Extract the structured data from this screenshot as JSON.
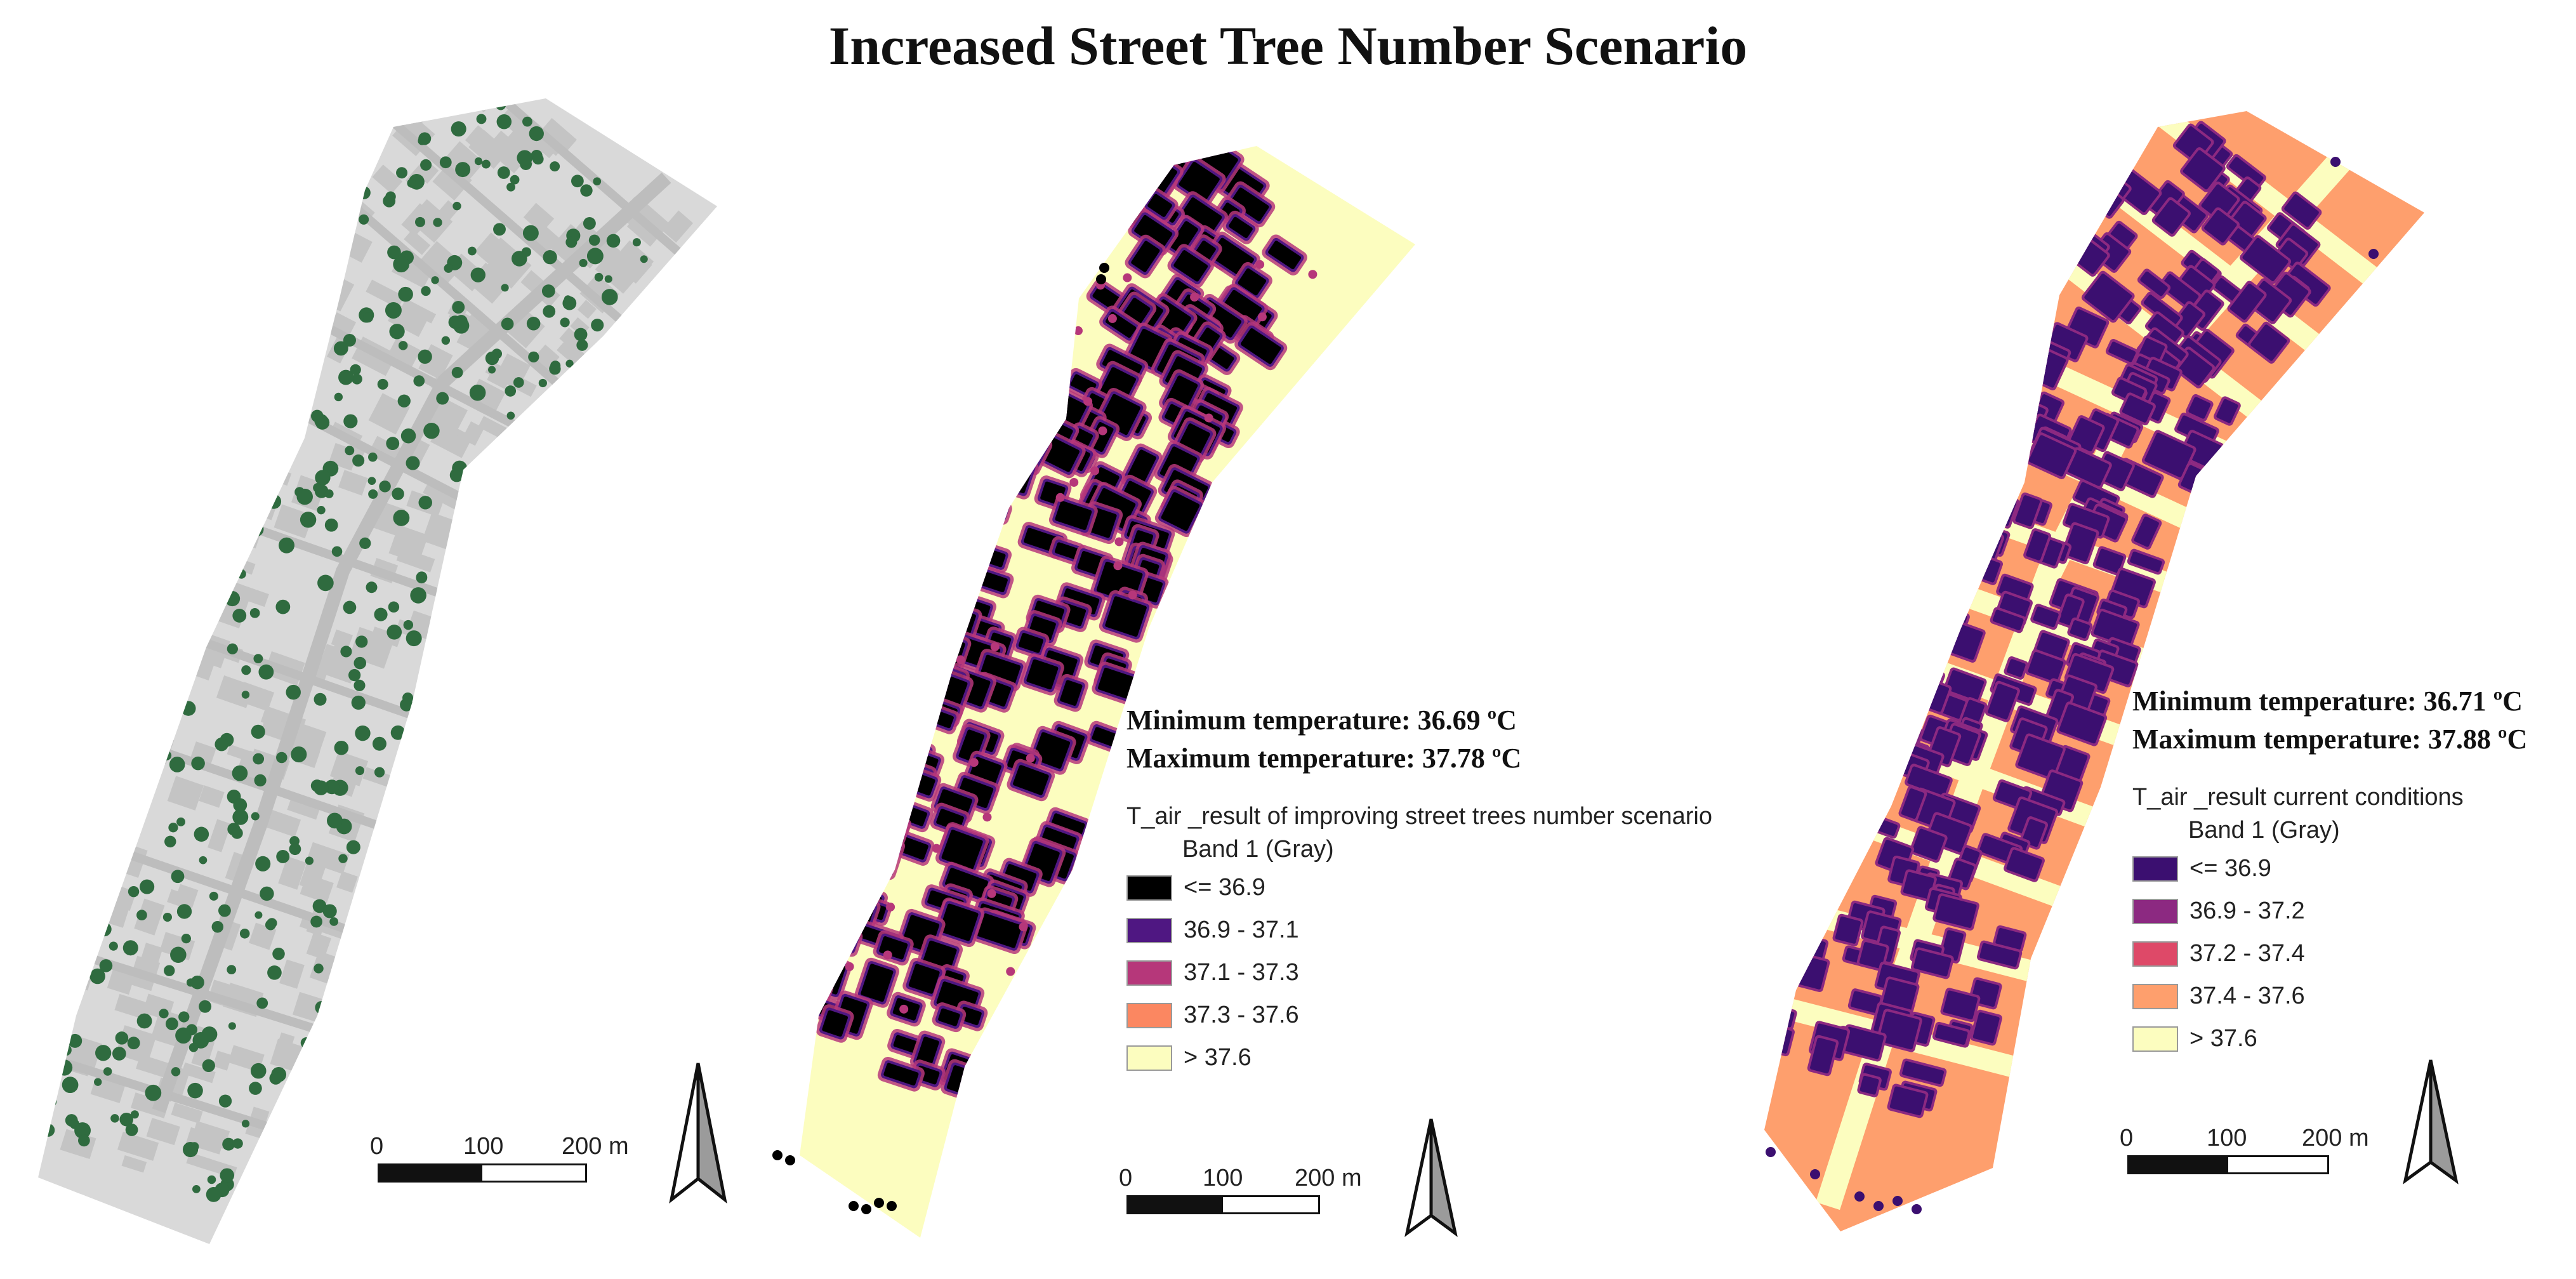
{
  "figure": {
    "title": "Increased Street Tree Number Scenario"
  },
  "panels": [
    {
      "id": "street-trees",
      "scale_bar": {
        "labels": [
          "0",
          "100",
          "200 m"
        ]
      }
    },
    {
      "id": "improved-scenario",
      "min_temp": "Minimum temperature: 36.69 ºC",
      "max_temp": "Maximum temperature: 37.78 ºC",
      "legend_title": "T_air _result of improving street trees number scenario",
      "band_label": "Band 1 (Gray)",
      "classes": [
        {
          "label": "<= 36.9",
          "color": "#000000"
        },
        {
          "label": "36.9 - 37.1",
          "color": "#4f1782"
        },
        {
          "label": "37.1 - 37.3",
          "color": "#b6377a"
        },
        {
          "label": "37.3 - 37.6",
          "color": "#fb8761"
        },
        {
          "label": "> 37.6",
          "color": "#fcfdbf"
        }
      ],
      "scale_bar": {
        "labels": [
          "0",
          "100",
          "200 m"
        ]
      }
    },
    {
      "id": "current-conditions",
      "min_temp": "Minimum temperature: 36.71 ºC",
      "max_temp": "Maximum temperature: 37.88 ºC",
      "legend_title": "T_air _result current conditions",
      "band_label": "Band 1 (Gray)",
      "classes": [
        {
          "label": "<= 36.9",
          "color": "#3b0f70"
        },
        {
          "label": "36.9 - 37.2",
          "color": "#8c2981"
        },
        {
          "label": "37.2 - 37.4",
          "color": "#de4968"
        },
        {
          "label": "37.4 - 37.6",
          "color": "#fe9f6d"
        },
        {
          "label": "> 37.6",
          "color": "#fcfdbf"
        }
      ],
      "scale_bar": {
        "labels": [
          "0",
          "100",
          "200 m"
        ]
      }
    }
  ],
  "colors": {
    "district_fill": "#d9d9d9",
    "building_fill": "#c4c4c4",
    "street_fill": "#bdbdbd",
    "tree_fill": "#2f6b3f",
    "improved_background": "#fcfdbf",
    "improved_building": "#000000",
    "improved_halo": "#b6377a",
    "improved_ring": "#4f1782",
    "current_background": "#fe9f6d",
    "current_street": "#fcfdbf",
    "current_building": "#3b0f70",
    "current_ring": "#8c2981"
  },
  "icons": {
    "north_arrow": "north-arrow-icon"
  }
}
